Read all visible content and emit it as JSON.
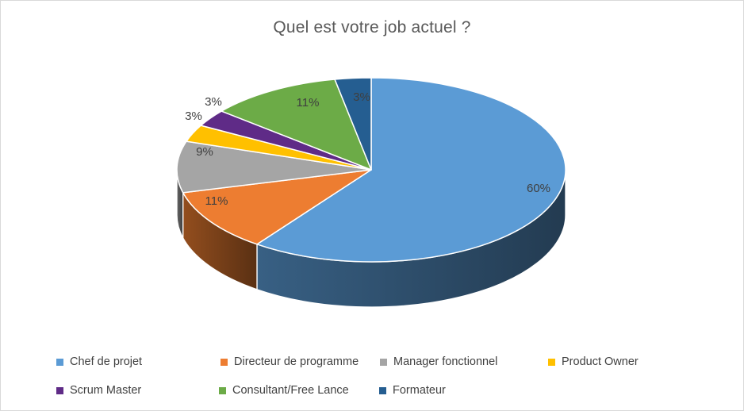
{
  "chart_data": {
    "type": "pie",
    "style": "3d",
    "title": "Quel est votre job actuel ?",
    "categories": [
      "Chef de projet",
      "Directeur de programme",
      "Manager fonctionnel",
      "Product Owner",
      "Scrum Master",
      "Consultant/Free Lance",
      "Formateur"
    ],
    "values": [
      60,
      11,
      9,
      3,
      3,
      11,
      3
    ],
    "data_labels": [
      "60%",
      "11%",
      "9%",
      "3%",
      "3%",
      "11%",
      "3%"
    ],
    "colors": [
      "#5B9BD5",
      "#ED7D31",
      "#A5A5A5",
      "#FFC000",
      "#5F2B87",
      "#6CAB47",
      "#255E91"
    ],
    "start_angle": 0,
    "direction": "clockwise",
    "legend_position": "bottom",
    "grid": false,
    "title_color": "#595959",
    "label_color": "#3F3F3F",
    "background": "#FFFFFF"
  }
}
